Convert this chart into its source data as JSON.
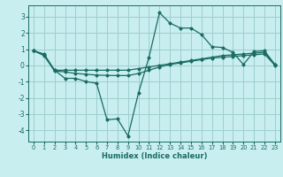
{
  "xlabel": "Humidex (Indice chaleur)",
  "bg_color": "#c8eef0",
  "grid_color": "#9dcfcc",
  "line_color": "#1a6b60",
  "xlim": [
    -0.5,
    23.5
  ],
  "ylim": [
    -4.7,
    3.7
  ],
  "yticks": [
    -4,
    -3,
    -2,
    -1,
    0,
    1,
    2,
    3
  ],
  "xticks": [
    0,
    1,
    2,
    3,
    4,
    5,
    6,
    7,
    8,
    9,
    10,
    11,
    12,
    13,
    14,
    15,
    16,
    17,
    18,
    19,
    20,
    21,
    22,
    23
  ],
  "lines": [
    {
      "x": [
        0,
        1,
        2,
        3,
        4,
        5,
        6,
        7,
        8,
        9,
        10,
        11,
        12,
        13,
        14,
        15,
        16,
        17,
        18,
        19,
        20,
        21,
        22,
        23
      ],
      "y": [
        0.9,
        0.7,
        -0.3,
        -0.3,
        -0.3,
        -0.3,
        -0.3,
        -0.3,
        -0.3,
        -0.3,
        -0.2,
        -0.1,
        0.0,
        0.1,
        0.2,
        0.3,
        0.4,
        0.5,
        0.6,
        0.65,
        0.7,
        0.75,
        0.8,
        0.05
      ]
    },
    {
      "x": [
        0,
        1,
        2,
        3,
        4,
        5,
        6,
        7,
        8,
        9,
        10,
        11,
        12,
        13,
        14,
        15,
        16,
        17,
        18,
        19,
        20,
        21,
        22,
        23
      ],
      "y": [
        0.9,
        0.6,
        -0.35,
        -0.4,
        -0.5,
        -0.55,
        -0.6,
        -0.62,
        -0.63,
        -0.63,
        -0.5,
        -0.3,
        -0.1,
        0.05,
        0.15,
        0.25,
        0.35,
        0.45,
        0.5,
        0.55,
        0.6,
        0.65,
        0.7,
        0.0
      ]
    },
    {
      "x": [
        0,
        1,
        2,
        3,
        4,
        5,
        6,
        7,
        8,
        9,
        10,
        11,
        12,
        13,
        14,
        15,
        16,
        17,
        18,
        19,
        20,
        21,
        22,
        23
      ],
      "y": [
        0.9,
        0.65,
        -0.3,
        -0.8,
        -0.8,
        -1.0,
        -1.1,
        -3.35,
        -3.3,
        -4.35,
        -1.7,
        0.5,
        3.25,
        2.6,
        2.3,
        2.3,
        1.9,
        1.15,
        1.1,
        0.8,
        0.05,
        0.85,
        0.9,
        0.05
      ]
    }
  ]
}
